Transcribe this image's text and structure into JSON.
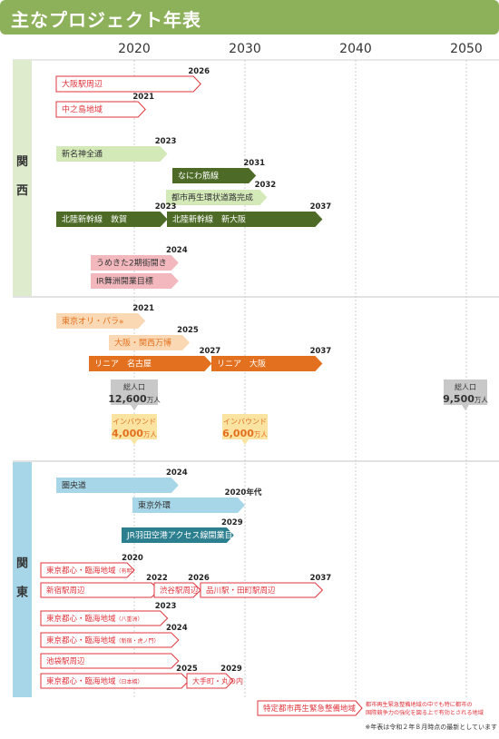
{
  "title": "主なプロジェクト年表",
  "note": "※年表は令和２年８月時点の最新としています",
  "regions": [
    {
      "label": "関　西"
    },
    {
      "label": "関　東"
    }
  ],
  "colors": {
    "header": "#8db05a",
    "kansai_band": "#deebcc",
    "kanto_band": "#a6d6e8",
    "dark_green": "#4d6b27",
    "light_green": "#d4e9b8",
    "pink": "#f2b8be",
    "peach": "#fbd8b4",
    "orange": "#e3701e",
    "light_blue": "#a6d6e8",
    "teal": "#2c7f8f",
    "red": "#e0343c",
    "gray_callout": "#c8c8c8",
    "yellow_callout": "#fbe4a2"
  },
  "chart_data": {
    "type": "timeline",
    "x_axis": {
      "ticks": [
        2020,
        2030,
        2040,
        2050
      ],
      "range": [
        2015,
        2050
      ]
    },
    "kansai": [
      {
        "label": "大阪駅周辺",
        "start": 2016,
        "end": 2026,
        "end_label": "2026",
        "style": "outline_red"
      },
      {
        "label": "中之島地域",
        "start": 2016,
        "end": 2021,
        "end_label": "2021",
        "style": "outline_red"
      },
      {
        "label": "新名神全通",
        "start": 2016,
        "end": 2023,
        "end_label": "2023",
        "style": "light_green"
      },
      {
        "label": "なにわ筋線",
        "start": 2023.5,
        "end": 2031,
        "end_label": "2031",
        "style": "dark_green"
      },
      {
        "label": "都市再生環状道路完成",
        "start": 2023.5,
        "end": 2032,
        "end_label": "2032",
        "style": "light_green"
      },
      {
        "label": "北陸新幹線　敦賀",
        "start": 2016,
        "end": 2023,
        "end_label": "2023",
        "style": "dark_green"
      },
      {
        "label": "北陸新幹線　新大阪",
        "start": 2023,
        "end": 2037,
        "end_label": "2037",
        "style": "dark_green"
      },
      {
        "label": "うめきた2期街開き",
        "start": 2019,
        "end": 2024,
        "end_label": "2024",
        "style": "pink"
      },
      {
        "label": "IR舞洲開業目標",
        "start": 2019,
        "end": 2024,
        "end_label": "",
        "style": "pink"
      }
    ],
    "national": [
      {
        "label": "東京オリ・パラ",
        "label_suffix": "※",
        "start": 2016,
        "end": 2021,
        "end_label": "2021",
        "style": "peach"
      },
      {
        "label": "大阪・関西万博",
        "start": 2019,
        "end": 2025,
        "end_label": "2025",
        "style": "peach"
      },
      {
        "label": "リニア　名古屋",
        "start": 2019,
        "end": 2027,
        "end_label": "2027",
        "style": "orange"
      },
      {
        "label": "リニア　大阪",
        "start": 2027,
        "end": 2037,
        "end_label": "2037",
        "style": "orange"
      }
    ],
    "population_callouts": [
      {
        "year": 2020,
        "title": "総人口",
        "value": "12,600",
        "unit": "万人",
        "style": "gray"
      },
      {
        "year": 2050,
        "title": "総人口",
        "value": "9,500",
        "unit": "万人",
        "style": "gray"
      },
      {
        "year": 2020,
        "title": "インバウンド",
        "value": "4,000",
        "unit": "万人",
        "style": "yellow"
      },
      {
        "year": 2030,
        "title": "インバウンド",
        "value": "6,000",
        "unit": "万人",
        "style": "yellow"
      }
    ],
    "kanto": [
      {
        "label": "圏央道",
        "start": 2016,
        "end": 2024,
        "end_label": "2024",
        "style": "light_blue"
      },
      {
        "label": "東京外環",
        "start": 2020,
        "end": 2030,
        "end_label": "2020年代",
        "style": "light_blue"
      },
      {
        "label": "JR羽田空港アクセス線開業目標",
        "start": 2019,
        "end": 2029,
        "end_label": "2029",
        "style": "teal"
      },
      {
        "label": "東京都心・臨海地域",
        "label_suffix": "（有明）",
        "start": 2012,
        "end": 2020,
        "end_label": "2020",
        "style": "outline_red"
      },
      {
        "label": "新宿駅周辺",
        "start": 2012,
        "end": 2022,
        "end_label": "2022",
        "style": "outline_red"
      },
      {
        "label": "渋谷駅周辺",
        "start": 2022,
        "end": 2026,
        "end_label": "2026",
        "style": "outline_red"
      },
      {
        "label": "品川駅・田町駅周辺",
        "start": 2026,
        "end": 2037,
        "end_label": "2037",
        "style": "outline_red"
      },
      {
        "label": "東京都心・臨海地域",
        "label_suffix": "（八重洲）",
        "start": 2012,
        "end": 2023,
        "end_label": "2023",
        "style": "outline_red"
      },
      {
        "label": "東京都心・臨海地域",
        "label_suffix": "（新宿・虎ノ門）",
        "start": 2012,
        "end": 2024,
        "end_label": "2024",
        "style": "outline_red"
      },
      {
        "label": "池袋駅周辺",
        "start": 2012,
        "end": 2024,
        "end_label": "",
        "style": "outline_red"
      },
      {
        "label": "東京都心・臨海地域",
        "label_suffix": "（日本橋）",
        "start": 2012,
        "end": 2025,
        "end_label": "2025",
        "style": "outline_red"
      },
      {
        "label": "大手町・丸の内",
        "start": 2025,
        "end": 2029,
        "end_label": "2029",
        "style": "outline_red"
      }
    ],
    "legend": {
      "label": "特定都市再生緊急整備地域",
      "description": [
        "都市再生緊急整備地域の中でも特に都市の",
        "国際競争力の強化を図る上で有効とされる地域"
      ]
    }
  }
}
